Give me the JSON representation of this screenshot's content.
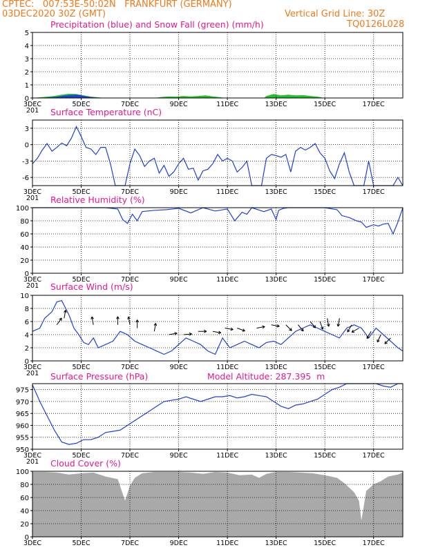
{
  "header": {
    "line1": "CPTEC:   007:53E-50:02N   FRANKFURT (GERMANY)",
    "line2": "03DEC2020 30Z (GMT)",
    "grid_note": "Vertical Grid Line: 30Z",
    "code": "TQ0126L028"
  },
  "colors": {
    "header": "#f07a1a",
    "title": "#e8178a",
    "line": "#1f3fd6",
    "snow": "#22c02a",
    "cloud": "#a9a9a9"
  },
  "x_axis": {
    "ticks": [
      "3DEC",
      "5DEC",
      "7DEC",
      "9DEC",
      "11DEC",
      "13DEC",
      "15DEC",
      "17DEC"
    ],
    "tick_days": [
      0,
      2,
      4,
      6,
      8,
      10,
      12,
      14
    ],
    "range": [
      0,
      15.2
    ],
    "partial_label": "201"
  },
  "chart_data": [
    {
      "type": "area",
      "title": "Precipitation (blue) and Snow Fall (green) (mm/h)",
      "yticks": [
        0,
        1,
        2,
        3,
        4,
        5
      ],
      "ylim": [
        0,
        5
      ],
      "series": [
        {
          "name": "Precipitation",
          "x": [
            0,
            0.5,
            1.0,
            1.4,
            1.8,
            2.0,
            2.3,
            2.6,
            3.0
          ],
          "values": [
            0,
            0.02,
            0.1,
            0.2,
            0.25,
            0.2,
            0.1,
            0.03,
            0
          ]
        },
        {
          "name": "Snow Fall",
          "x": [
            0,
            0.3,
            0.6,
            0.9,
            1.2,
            1.5,
            1.8,
            2.1,
            2.4,
            2.7,
            3.0,
            3.5,
            4.0,
            4.5,
            5.0,
            5.3,
            5.6,
            5.9,
            6.2,
            6.5,
            6.8,
            7.1,
            7.4,
            7.7,
            8.0,
            8.5,
            9.0,
            9.5,
            9.6,
            9.9,
            10.2,
            10.5,
            10.8,
            11.1,
            11.4,
            11.7,
            12.0,
            12.5,
            13.0,
            13.5,
            14.0,
            14.5,
            15.0,
            15.2
          ],
          "values": [
            0,
            0.05,
            0.1,
            0.15,
            0.25,
            0.32,
            0.3,
            0.2,
            0.1,
            0.05,
            0,
            0,
            0,
            0,
            0,
            0.08,
            0.12,
            0.1,
            0.15,
            0.12,
            0.15,
            0.2,
            0.12,
            0.05,
            0,
            0,
            0,
            0,
            0.15,
            0.3,
            0.2,
            0.25,
            0.2,
            0.22,
            0.15,
            0.1,
            0,
            0,
            0,
            0,
            0,
            0,
            0,
            0
          ]
        }
      ]
    },
    {
      "type": "line",
      "title": "Surface Temperature (nC)",
      "yticks": [
        3,
        0,
        -3,
        -6
      ],
      "ylim": [
        -7.5,
        4.5
      ],
      "x": [
        0,
        0.2,
        0.4,
        0.6,
        0.8,
        1.0,
        1.2,
        1.4,
        1.6,
        1.8,
        2.0,
        2.2,
        2.4,
        2.6,
        2.8,
        3.0,
        3.2,
        3.4,
        3.6,
        3.8,
        4.0,
        4.2,
        4.4,
        4.6,
        4.8,
        5.0,
        5.2,
        5.4,
        5.6,
        5.8,
        6.0,
        6.2,
        6.4,
        6.6,
        6.8,
        7.0,
        7.2,
        7.4,
        7.6,
        7.8,
        8.0,
        8.2,
        8.4,
        8.6,
        8.8,
        9.0,
        9.2,
        9.4,
        9.6,
        9.8,
        10.0,
        10.2,
        10.4,
        10.6,
        10.8,
        11.0,
        11.2,
        11.4,
        11.6,
        11.8,
        12.0,
        12.2,
        12.4,
        12.6,
        12.8,
        13.0,
        13.2,
        13.4,
        13.6,
        13.8,
        14.0,
        14.2,
        14.4,
        14.6,
        14.8,
        15.0,
        15.2
      ],
      "values": [
        -3.5,
        -2.5,
        -1.0,
        0.2,
        -1.2,
        -0.5,
        0.3,
        -0.2,
        1.2,
        3.3,
        1.5,
        -0.5,
        -0.8,
        -1.8,
        -0.5,
        -0.5,
        -3.5,
        -7.8,
        -7.8,
        -7.8,
        -3.5,
        -0.8,
        -2.0,
        -4.0,
        -3.0,
        -2.5,
        -5.2,
        -3.8,
        -5.8,
        -5.0,
        -3.5,
        -2.5,
        -4.5,
        -4.3,
        -6.5,
        -4.8,
        -4.5,
        -3.5,
        -1.8,
        -3.0,
        -2.5,
        -3.0,
        -5.0,
        -4.2,
        -3.0,
        -7.8,
        -7.8,
        -7.8,
        -2.5,
        -1.8,
        -2.0,
        -2.3,
        -1.8,
        -5.0,
        -1.2,
        -0.5,
        -1.0,
        -0.5,
        0.2,
        -1.5,
        -2.5,
        -4.8,
        -6.2,
        -3.5,
        -1.5,
        -5.0,
        -7.8,
        -7.8,
        -7.8,
        -3.0,
        -7.8,
        -7.8,
        -7.8,
        -7.8,
        -7.8,
        -6.0,
        -7.8
      ]
    },
    {
      "type": "line",
      "title": "Relative Humidity (%)",
      "yticks": [
        0,
        20,
        40,
        60,
        80,
        100
      ],
      "ylim": [
        0,
        100
      ],
      "x": [
        0,
        0.5,
        1.0,
        1.5,
        2.0,
        2.5,
        3.0,
        3.5,
        3.7,
        3.9,
        4.1,
        4.3,
        4.5,
        5.0,
        5.5,
        6.0,
        6.5,
        7.0,
        7.5,
        8.0,
        8.3,
        8.6,
        8.8,
        9.0,
        9.5,
        9.8,
        10.0,
        10.1,
        10.3,
        10.5,
        11.0,
        11.5,
        12.0,
        12.5,
        12.7,
        13.0,
        13.3,
        13.5,
        13.7,
        14.0,
        14.2,
        14.4,
        14.6,
        14.8,
        15.0,
        15.2
      ],
      "values": [
        100,
        100,
        100,
        100,
        100,
        100,
        100,
        98,
        82,
        76,
        90,
        80,
        94,
        96,
        97,
        99,
        92,
        100,
        95,
        98,
        80,
        93,
        90,
        100,
        94,
        98,
        82,
        96,
        99,
        100,
        100,
        100,
        100,
        97,
        88,
        85,
        80,
        78,
        70,
        74,
        72,
        75,
        76,
        60,
        78,
        100
      ]
    },
    {
      "type": "line",
      "title": "Surface Wind (m/s)",
      "yticks": [
        0,
        2,
        4,
        6,
        8,
        10
      ],
      "ylim": [
        0,
        10
      ],
      "x": [
        0,
        0.3,
        0.5,
        0.8,
        1.0,
        1.2,
        1.5,
        1.7,
        1.9,
        2.1,
        2.3,
        2.5,
        2.7,
        3.0,
        3.3,
        3.6,
        3.9,
        4.2,
        4.5,
        4.8,
        5.1,
        5.4,
        5.7,
        6.0,
        6.3,
        6.6,
        6.9,
        7.2,
        7.5,
        7.8,
        8.1,
        8.4,
        8.7,
        9.0,
        9.3,
        9.6,
        9.9,
        10.2,
        10.5,
        10.8,
        11.1,
        11.4,
        11.7,
        12.0,
        12.3,
        12.6,
        12.9,
        13.2,
        13.5,
        13.8,
        14.1,
        14.4,
        14.7,
        15.0,
        15.2
      ],
      "values": [
        4.5,
        5.0,
        6.5,
        7.5,
        9.0,
        9.2,
        7.0,
        5.0,
        4.0,
        2.8,
        2.5,
        3.5,
        2.0,
        2.5,
        3.0,
        4.5,
        4.0,
        3.0,
        2.5,
        2.0,
        1.5,
        1.0,
        1.5,
        2.5,
        3.5,
        3.0,
        2.5,
        1.5,
        1.0,
        3.5,
        2.0,
        2.5,
        3.0,
        2.5,
        2.0,
        2.8,
        3.0,
        2.5,
        3.5,
        4.5,
        5.0,
        5.5,
        5.0,
        4.5,
        4.0,
        3.5,
        5.0,
        5.5,
        5.0,
        3.5,
        5.0,
        4.0,
        3.0,
        2.0,
        1.5
      ]
    },
    {
      "type": "line",
      "title": "Surface Pressure (hPa)",
      "annotation": "Model Altitude: 287.395  m",
      "yticks": [
        950,
        955,
        960,
        965,
        970,
        975
      ],
      "ylim": [
        950,
        977.5
      ],
      "x": [
        0,
        0.3,
        0.6,
        0.9,
        1.2,
        1.5,
        1.8,
        2.1,
        2.4,
        2.7,
        3.0,
        3.3,
        3.6,
        3.9,
        4.2,
        4.5,
        4.8,
        5.1,
        5.4,
        5.7,
        6.0,
        6.3,
        6.6,
        6.9,
        7.2,
        7.5,
        7.8,
        8.1,
        8.4,
        8.7,
        9.0,
        9.3,
        9.6,
        9.9,
        10.2,
        10.5,
        10.8,
        11.1,
        11.4,
        11.7,
        12.0,
        12.3,
        12.6,
        12.9,
        13.2,
        13.5,
        13.8,
        14.1,
        14.4,
        14.7,
        15.0,
        15.2
      ],
      "values": [
        977,
        970,
        964,
        958,
        953,
        952,
        952.5,
        954,
        954,
        955,
        957,
        957.5,
        958,
        960,
        962,
        964,
        966,
        968,
        970,
        970.5,
        971,
        972,
        971,
        970,
        971,
        972,
        972,
        972.5,
        971.5,
        972,
        973,
        972.5,
        972,
        970,
        968,
        967,
        968.5,
        969,
        970,
        971,
        973,
        975,
        976,
        977.5,
        978,
        978,
        978,
        978,
        976.5,
        976,
        978,
        978
      ]
    },
    {
      "type": "area",
      "title": "Cloud Cover (%)",
      "yticks": [
        0,
        20,
        40,
        60,
        80,
        100
      ],
      "ylim": [
        0,
        100
      ],
      "x": [
        0,
        0.5,
        1.0,
        1.5,
        2.0,
        2.5,
        3.0,
        3.5,
        3.8,
        4.0,
        4.2,
        4.5,
        5.0,
        5.5,
        6.0,
        6.5,
        7.0,
        7.5,
        8.0,
        8.5,
        9.0,
        9.3,
        9.6,
        10.0,
        10.5,
        11.0,
        11.5,
        12.0,
        12.5,
        12.8,
        13.0,
        13.2,
        13.4,
        13.5,
        13.7,
        14.0,
        14.3,
        14.6,
        15.0,
        15.2
      ],
      "values": [
        99,
        99,
        98,
        95,
        97,
        98,
        92,
        88,
        55,
        78,
        90,
        97,
        99,
        99,
        99,
        98,
        96,
        99,
        98,
        94,
        95,
        90,
        96,
        99,
        99,
        98,
        97,
        94,
        90,
        82,
        75,
        68,
        55,
        25,
        70,
        80,
        85,
        92,
        95,
        98
      ]
    }
  ]
}
